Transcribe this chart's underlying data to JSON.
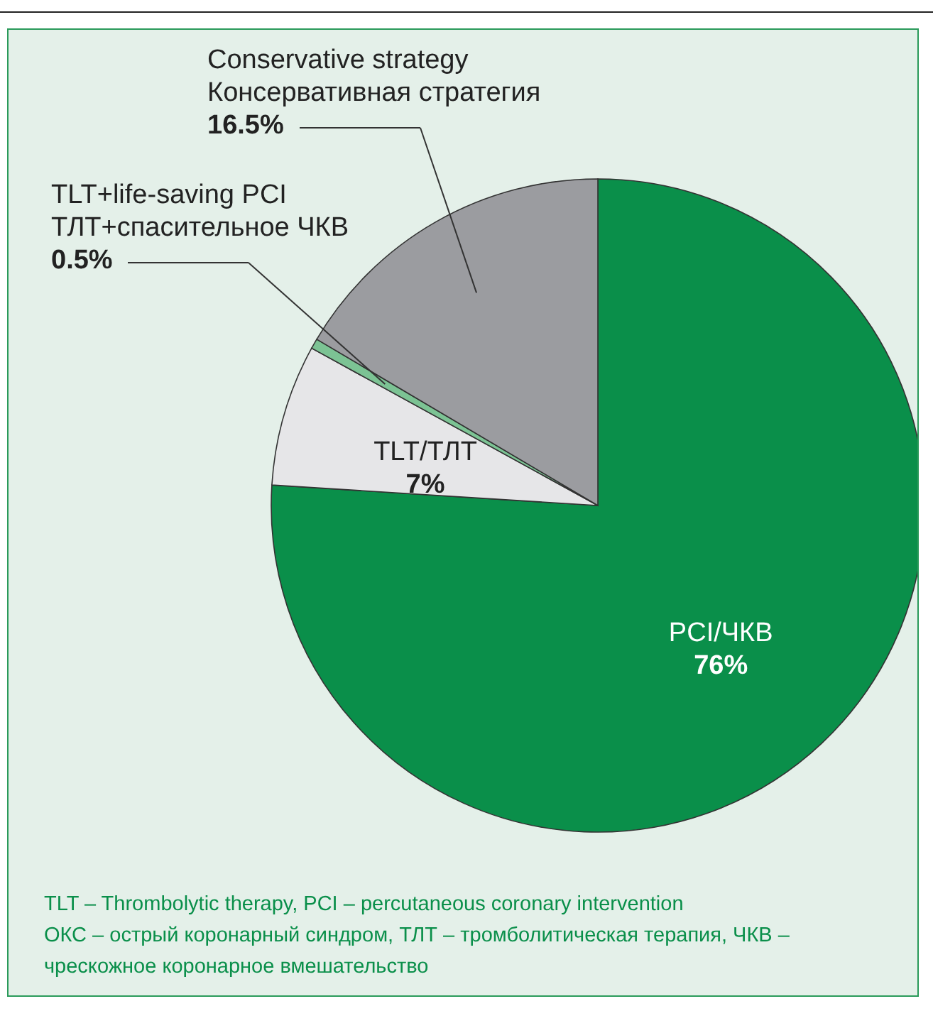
{
  "chart_data": {
    "type": "pie",
    "categories": [
      "PCI/ЧКВ",
      "TLT/ТЛТ",
      "TLT+life-saving PCI\nТЛТ+спасительное ЧКВ",
      "Conservative strategy\nКонсервативная стратегия"
    ],
    "values": [
      76,
      7,
      0.5,
      16.5
    ],
    "value_labels": [
      "76%",
      "7%",
      "0.5%",
      "16.5%"
    ],
    "colors": [
      "#0a8f4a",
      "#e6e6e8",
      "#7cc394",
      "#9b9ca0"
    ],
    "annotations": [
      "TLT – Thrombolytic therapy, PCI – percutaneous coronary intervention",
      "ОКС – острый коронарный синдром, ТЛТ – тромболитическая терапия, ЧКВ – чрескожное коронарное вмешательство"
    ]
  }
}
